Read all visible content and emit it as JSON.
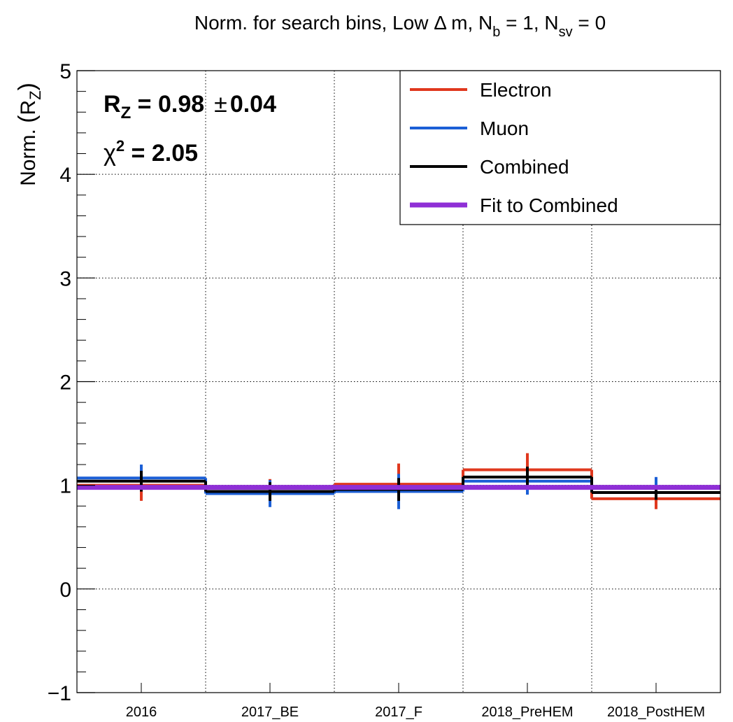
{
  "chart_data": {
    "type": "line",
    "title": {
      "main": "Norm. for search bins, Low ",
      "delta": "Δ",
      "m": " m, N",
      "sub1": "b",
      "mid": " = 1, N",
      "sub2": "sv",
      "tail": " = 0"
    },
    "ylabel": {
      "main": "Norm. ",
      "open": "(",
      "r": "R",
      "sub": "Z",
      "close": ")"
    },
    "xlabel": "",
    "ylim": [
      -1,
      5
    ],
    "yticks": [
      -1,
      0,
      1,
      2,
      3,
      4,
      5
    ],
    "ytick_labels": [
      "−1",
      "0",
      "1",
      "2",
      "3",
      "4",
      "5"
    ],
    "grid": true,
    "categories": [
      "2016",
      "2017_BE",
      "2017_F",
      "2018_PreHEM",
      "2018_PostHEM"
    ],
    "series": [
      {
        "name": "Electron",
        "color": "#e0381e",
        "values": [
          1.0,
          0.93,
          1.01,
          1.15,
          0.87
        ],
        "errors": [
          0.15,
          0.13,
          0.2,
          0.16,
          0.1
        ]
      },
      {
        "name": "Muon",
        "color": "#1b5fd6",
        "values": [
          1.07,
          0.92,
          0.94,
          1.04,
          0.98
        ],
        "errors": [
          0.13,
          0.13,
          0.17,
          0.13,
          0.1
        ]
      },
      {
        "name": "Combined",
        "color": "#000000",
        "values": [
          1.04,
          0.94,
          0.96,
          1.08,
          0.93
        ],
        "errors": [
          0.1,
          0.09,
          0.11,
          0.1,
          0.07
        ]
      },
      {
        "name": "Fit to Combined",
        "color": "#8f2fd6",
        "values": [
          0.98,
          0.98,
          0.98,
          0.98,
          0.98
        ],
        "errors": []
      }
    ],
    "annotations": {
      "rz": {
        "label": "R",
        "sub": "Z",
        "value": " = 0.98",
        "pm": "±",
        "err": "0.04"
      },
      "chi2": {
        "label": "χ",
        "sup": "2",
        "value": " = 2.05"
      }
    },
    "legend_position": "top-right"
  }
}
